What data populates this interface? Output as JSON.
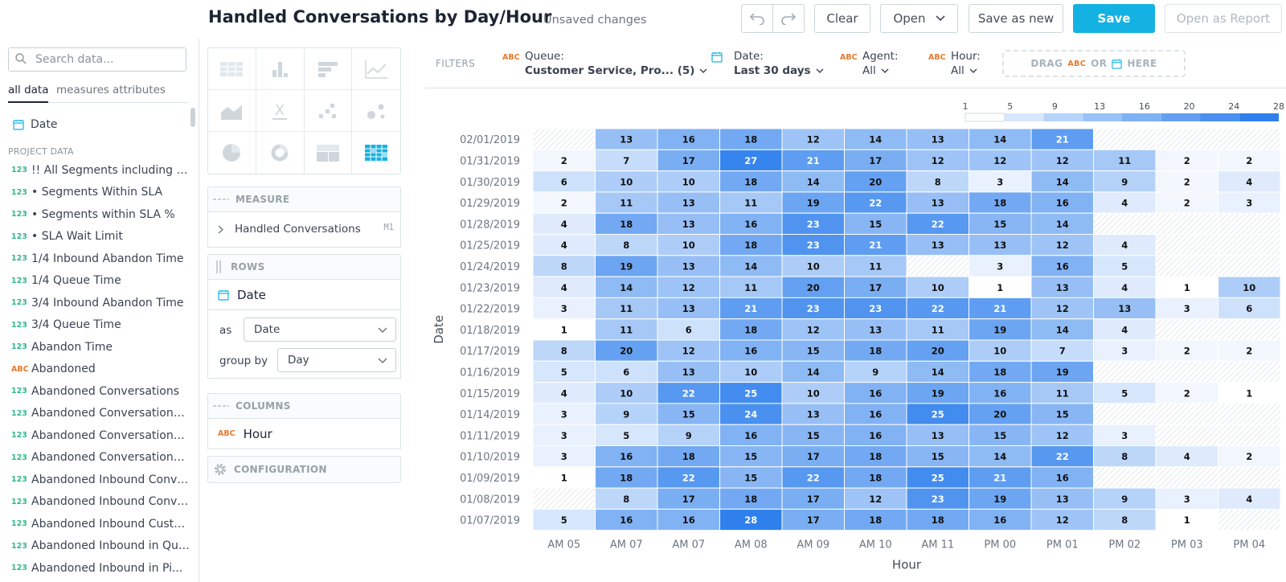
{
  "header": {
    "title": "Handled Conversations by Day/Hour",
    "status": "Unsaved changes",
    "buttons": {
      "clear": "Clear",
      "open": "Open",
      "save_as_new": "Save as new",
      "save": "Save",
      "open_as_report": "Open as Report"
    }
  },
  "catalog": {
    "search_placeholder": "Search data...",
    "tabs": [
      "all data",
      "measures",
      "attributes"
    ],
    "active_tab": "all data",
    "date_item": "Date",
    "section_label": "PROJECT DATA",
    "items": [
      {
        "type": "123",
        "label": "!! All Segments including Virtual"
      },
      {
        "type": "123",
        "label": "• Segments Within SLA"
      },
      {
        "type": "123",
        "label": "• Segments within SLA %"
      },
      {
        "type": "123",
        "label": "• SLA Wait Limit"
      },
      {
        "type": "123",
        "label": "1/4 Inbound Abandon Time"
      },
      {
        "type": "123",
        "label": "1/4 Queue Time"
      },
      {
        "type": "123",
        "label": "3/4 Inbound Abandon Time"
      },
      {
        "type": "123",
        "label": "3/4 Queue Time"
      },
      {
        "type": "123",
        "label": "Abandon Time"
      },
      {
        "type": "ABC",
        "label": "Abandoned"
      },
      {
        "type": "123",
        "label": "Abandoned Conversations"
      },
      {
        "type": "123",
        "label": "Abandoned Conversations %"
      },
      {
        "type": "123",
        "label": "Abandoned Conversations in..."
      },
      {
        "type": "123",
        "label": "Abandoned Conversations in..."
      },
      {
        "type": "123",
        "label": "Abandoned Inbound Convers..."
      },
      {
        "type": "123",
        "label": "Abandoned Inbound Convers..."
      },
      {
        "type": "123",
        "label": "Abandoned Inbound Custom..."
      },
      {
        "type": "123",
        "label": "Abandoned Inbound in Queue"
      },
      {
        "type": "123",
        "label": "Abandoned Inbound in Pi..."
      }
    ]
  },
  "buckets": {
    "measure": {
      "label": "MEASURE",
      "item": "Handled Conversations",
      "tag": "M1"
    },
    "rows": {
      "label": "ROWS",
      "item": "Date",
      "as_label": "as",
      "as_value": "Date",
      "group_by_label": "group by",
      "group_by_value": "Day"
    },
    "columns": {
      "label": "COLUMNS",
      "item": "Hour",
      "item_type": "ABC"
    },
    "configuration": {
      "label": "CONFIGURATION"
    },
    "viz_types": [
      "table-icon",
      "column-chart-icon",
      "bar-chart-icon",
      "line-chart-icon",
      "area-chart-icon",
      "headline-icon",
      "scatter-icon",
      "bubble-icon",
      "pie-icon",
      "donut-icon",
      "treemap-icon",
      "heatmap-icon"
    ]
  },
  "filters": {
    "label": "FILTERS",
    "queue": {
      "type": "ABC",
      "title": "Queue:",
      "value": "Customer Service, Pro... (5)"
    },
    "date": {
      "title": "Date:",
      "value": "Last 30 days"
    },
    "agent": {
      "type": "ABC",
      "title": "Agent:",
      "value": "All"
    },
    "hour": {
      "type": "ABC",
      "title": "Hour:",
      "value": "All"
    },
    "drop_zone": {
      "drag": "DRAG",
      "abc": "ABC",
      "or": "OR",
      "here": "HERE"
    }
  },
  "colors": {
    "accent": "#14b2e2",
    "heat_max": "#2f80ed",
    "heat_min": "#ffffff",
    "attribute": "#e77a2c",
    "fact": "#35b88c"
  },
  "chart_data": {
    "type": "heatmap",
    "title": "",
    "xlabel": "Hour",
    "ylabel": "Date",
    "x": [
      "AM 05",
      "AM 07",
      "AM 07",
      "AM 08",
      "AM 09",
      "AM 10",
      "AM 11",
      "PM 00",
      "PM 01",
      "PM 02",
      "PM 03",
      "PM 04"
    ],
    "y": [
      "02/01/2019",
      "01/31/2019",
      "01/30/2019",
      "01/29/2019",
      "01/28/2019",
      "01/25/2019",
      "01/24/2019",
      "01/23/2019",
      "01/22/2019",
      "01/18/2019",
      "01/17/2019",
      "01/16/2019",
      "01/15/2019",
      "01/14/2019",
      "01/11/2019",
      "01/10/2019",
      "01/09/2019",
      "01/08/2019",
      "01/07/2019"
    ],
    "values": [
      [
        null,
        13,
        16,
        18,
        12,
        14,
        13,
        14,
        21,
        null,
        null,
        null
      ],
      [
        2,
        7,
        17,
        27,
        21,
        17,
        12,
        12,
        12,
        11,
        2,
        2
      ],
      [
        6,
        10,
        10,
        18,
        14,
        20,
        8,
        3,
        14,
        9,
        2,
        4
      ],
      [
        2,
        11,
        13,
        11,
        19,
        22,
        13,
        18,
        16,
        4,
        2,
        3
      ],
      [
        4,
        18,
        13,
        16,
        23,
        15,
        22,
        15,
        14,
        null,
        null,
        null
      ],
      [
        4,
        8,
        10,
        18,
        23,
        21,
        13,
        13,
        12,
        4,
        null,
        null
      ],
      [
        8,
        19,
        13,
        14,
        10,
        11,
        null,
        3,
        16,
        5,
        null,
        null
      ],
      [
        4,
        14,
        12,
        11,
        20,
        17,
        10,
        1,
        13,
        4,
        1,
        10
      ],
      [
        3,
        11,
        13,
        21,
        23,
        23,
        22,
        21,
        12,
        13,
        3,
        6
      ],
      [
        1,
        11,
        6,
        18,
        12,
        13,
        11,
        19,
        14,
        4,
        null,
        null
      ],
      [
        8,
        20,
        12,
        16,
        15,
        18,
        20,
        10,
        7,
        3,
        2,
        2
      ],
      [
        5,
        6,
        13,
        10,
        14,
        9,
        14,
        18,
        19,
        null,
        null,
        null
      ],
      [
        4,
        10,
        22,
        25,
        10,
        16,
        19,
        16,
        11,
        5,
        2,
        1
      ],
      [
        3,
        9,
        15,
        24,
        13,
        16,
        25,
        20,
        15,
        null,
        null,
        null
      ],
      [
        3,
        5,
        9,
        16,
        15,
        16,
        13,
        15,
        12,
        3,
        null,
        null
      ],
      [
        3,
        16,
        18,
        15,
        17,
        18,
        15,
        14,
        22,
        8,
        4,
        2
      ],
      [
        1,
        18,
        22,
        15,
        22,
        18,
        25,
        21,
        16,
        null,
        null,
        null
      ],
      [
        null,
        8,
        17,
        18,
        17,
        12,
        23,
        19,
        13,
        9,
        3,
        4
      ],
      [
        5,
        16,
        16,
        28,
        17,
        18,
        18,
        16,
        12,
        8,
        1,
        null
      ]
    ],
    "legend": {
      "ticks": [
        "1",
        "5",
        "9",
        "13",
        "16",
        "20",
        "24",
        "28"
      ],
      "min": 1,
      "max": 28,
      "placement": "top-right"
    }
  }
}
